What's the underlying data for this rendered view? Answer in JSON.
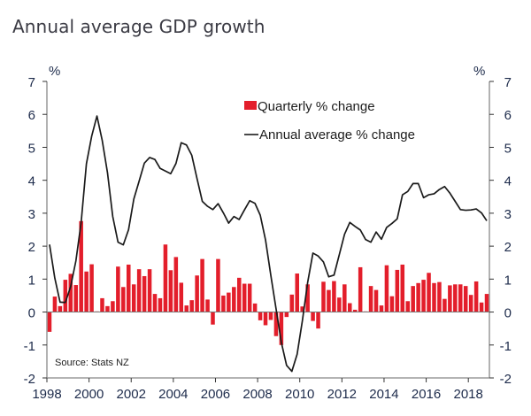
{
  "title": "Annual average GDP growth",
  "chart_data": {
    "type": "bar",
    "title": "Annual average GDP growth",
    "xlabel": "",
    "ylabel_left": "%",
    "ylabel_right": "%",
    "ylim": [
      -2,
      7
    ],
    "yticks": [
      "7",
      "6",
      "5",
      "4",
      "3",
      "2",
      "1",
      "0",
      "-1",
      "-2"
    ],
    "ytick_values": [
      7,
      6,
      5,
      4,
      3,
      2,
      1,
      0,
      -1,
      -2
    ],
    "xticks": [
      "1998",
      "2000",
      "2002",
      "2004",
      "2006",
      "2008",
      "2010",
      "2012",
      "2014",
      "2016",
      "2018"
    ],
    "xtick_values": [
      1998,
      2000,
      2002,
      2004,
      2006,
      2008,
      2010,
      2012,
      2014,
      2016,
      2018
    ],
    "x_start": "1998Q1",
    "x_end": "2018Q4",
    "grid": false,
    "legend_position": "top-center",
    "source": "Source: Stats NZ",
    "series": [
      {
        "name": "Quarterly % change",
        "type": "bar",
        "color": "#e31e2b",
        "values": [
          -0.6,
          0.47,
          0.18,
          0.98,
          1.16,
          0.82,
          2.76,
          1.23,
          1.45,
          0.02,
          0.42,
          0.18,
          0.33,
          1.38,
          0.76,
          1.44,
          0.84,
          1.3,
          1.09,
          1.3,
          0.55,
          0.42,
          2.05,
          1.27,
          1.67,
          0.89,
          0.2,
          0.36,
          1.11,
          1.61,
          0.38,
          -0.38,
          1.61,
          0.5,
          0.59,
          0.76,
          1.04,
          0.86,
          0.86,
          0.26,
          -0.25,
          -0.4,
          -0.24,
          -0.73,
          -1.0,
          -0.15,
          0.53,
          1.17,
          0.17,
          0.84,
          -0.27,
          -0.5,
          0.92,
          0.67,
          0.94,
          0.44,
          0.84,
          0.27,
          0.07,
          1.36,
          0.02,
          0.79,
          0.67,
          0.2,
          1.42,
          0.48,
          1.28,
          1.44,
          0.33,
          0.79,
          0.88,
          0.98,
          1.19,
          0.88,
          0.91,
          0.4,
          0.81,
          0.84,
          0.84,
          0.79,
          0.52,
          0.93,
          0.29,
          0.55
        ]
      },
      {
        "name": "Annual average % change",
        "type": "line",
        "color": "#1a1a1a",
        "values": [
          2.05,
          1.03,
          0.3,
          0.29,
          0.77,
          1.55,
          2.72,
          4.5,
          5.34,
          5.95,
          5.21,
          4.23,
          2.9,
          2.12,
          2.04,
          2.5,
          3.43,
          3.97,
          4.52,
          4.69,
          4.63,
          4.36,
          4.28,
          4.2,
          4.51,
          5.14,
          5.07,
          4.76,
          4.05,
          3.36,
          3.21,
          3.11,
          3.29,
          3.01,
          2.7,
          2.9,
          2.81,
          3.1,
          3.38,
          3.3,
          2.94,
          2.19,
          1.12,
          0.1,
          -0.92,
          -1.62,
          -1.8,
          -1.28,
          -0.26,
          0.9,
          1.79,
          1.7,
          1.52,
          1.07,
          1.12,
          1.74,
          2.36,
          2.72,
          2.6,
          2.49,
          2.2,
          2.12,
          2.43,
          2.21,
          2.57,
          2.69,
          2.83,
          3.56,
          3.66,
          3.9,
          3.9,
          3.47,
          3.56,
          3.59,
          3.72,
          3.81,
          3.61,
          3.36,
          3.11,
          3.09,
          3.1,
          3.13,
          3.01,
          2.77
        ]
      }
    ]
  }
}
